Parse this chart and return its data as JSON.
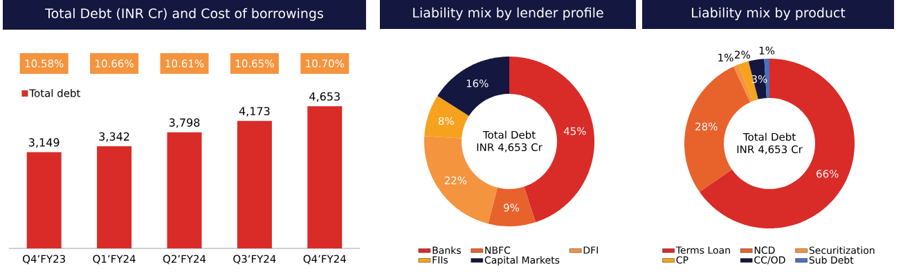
{
  "chart_data": [
    {
      "type": "bar",
      "title": "Total Debt (INR Cr) and Cost of borrowings",
      "categories": [
        "Q4’FY23",
        "Q1’FY24",
        "Q2’FY24",
        "Q3’FY24",
        "Q4’FY24"
      ],
      "series": [
        {
          "name": "Total debt",
          "color": "#d92b27",
          "values": [
            3149,
            3342,
            3798,
            4173,
            4653
          ],
          "value_labels": [
            "3,149",
            "3,342",
            "3,798",
            "4,173",
            "4,653"
          ]
        }
      ],
      "legend": "top left",
      "annotations": [
        "10.58%",
        "10.66%",
        "10.61%",
        "10.65%",
        "10.70%"
      ]
    },
    {
      "type": "donut",
      "title": "Liability mix by lender profile",
      "categories": [
        "Banks",
        "NBFC",
        "DFI",
        "FIIs",
        "Capital Markets"
      ],
      "values": [
        45,
        9,
        22,
        8,
        16
      ],
      "value_labels": [
        "45%",
        "9%",
        "22%",
        "8%",
        "16%"
      ],
      "colors": [
        "#d92b27",
        "#e8622c",
        "#f4943e",
        "#f6a21e",
        "#14173f"
      ],
      "legend": "bottom",
      "annotations": [
        "Total Debt INR 4,653 Cr"
      ]
    },
    {
      "type": "donut",
      "title": "Liability mix by product",
      "categories": [
        "Terms Loan",
        "NCD",
        "Securitization",
        "CP",
        "CC/OD",
        "Sub Debt"
      ],
      "values": [
        66,
        28,
        1,
        2,
        3,
        1
      ],
      "value_labels": [
        "66%",
        "28%",
        "1%",
        "2%",
        "3%",
        "1%"
      ],
      "colors": [
        "#d92b27",
        "#e8622c",
        "#f4943e",
        "#f6a21e",
        "#14173f",
        "#4a6fbf"
      ],
      "legend": "bottom",
      "annotations": [
        "Total Debt INR 4,653 Cr"
      ]
    }
  ]
}
